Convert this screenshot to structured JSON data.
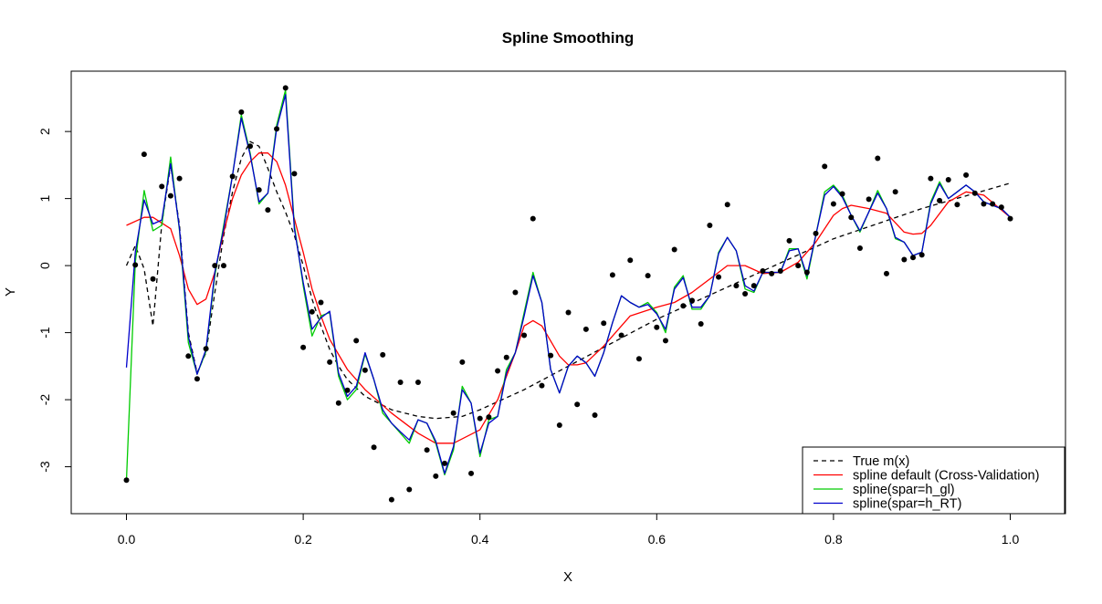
{
  "chart_data": {
    "type": "scatter",
    "title": "Spline Smoothing",
    "xlabel": "X",
    "ylabel": "Y",
    "xlim": [
      -0.0625,
      1.0625
    ],
    "ylim": [
      -3.7,
      2.9
    ],
    "x_ticks": [
      0.0,
      0.2,
      0.4,
      0.6,
      0.8,
      1.0
    ],
    "x_tick_labels": [
      "0.0",
      "0.2",
      "0.4",
      "0.6",
      "0.8",
      "1.0"
    ],
    "y_ticks": [
      -3,
      -2,
      -1,
      0,
      1,
      2
    ],
    "y_tick_labels": [
      "-3",
      "-2",
      "-1",
      "0",
      "1",
      "2"
    ],
    "grid": false,
    "legend_position": "bottom-right",
    "points": {
      "x": [
        0.0,
        0.01,
        0.02,
        0.03,
        0.04,
        0.05,
        0.06,
        0.07,
        0.08,
        0.09,
        0.1,
        0.11,
        0.12,
        0.13,
        0.14,
        0.15,
        0.16,
        0.17,
        0.18,
        0.19,
        0.2,
        0.21,
        0.22,
        0.23,
        0.24,
        0.25,
        0.26,
        0.27,
        0.28,
        0.29,
        0.3,
        0.31,
        0.32,
        0.33,
        0.34,
        0.35,
        0.36,
        0.37,
        0.38,
        0.39,
        0.4,
        0.41,
        0.42,
        0.43,
        0.44,
        0.45,
        0.46,
        0.47,
        0.48,
        0.49,
        0.5,
        0.51,
        0.52,
        0.53,
        0.54,
        0.55,
        0.56,
        0.57,
        0.58,
        0.59,
        0.6,
        0.61,
        0.62,
        0.63,
        0.64,
        0.65,
        0.66,
        0.67,
        0.68,
        0.69,
        0.7,
        0.71,
        0.72,
        0.73,
        0.74,
        0.75,
        0.76,
        0.77,
        0.78,
        0.79,
        0.8,
        0.81,
        0.82,
        0.83,
        0.84,
        0.85,
        0.86,
        0.87,
        0.88,
        0.89,
        0.9,
        0.91,
        0.92,
        0.93,
        0.94,
        0.95,
        0.96,
        0.97,
        0.98,
        0.99,
        1.0
      ],
      "y": [
        -3.2,
        0.01,
        1.66,
        -0.2,
        1.18,
        1.04,
        1.3,
        -1.35,
        -1.69,
        -1.24,
        0.0,
        0.0,
        1.33,
        2.29,
        1.78,
        1.13,
        0.83,
        2.04,
        2.65,
        1.37,
        -1.22,
        -0.69,
        -0.55,
        -1.44,
        -2.05,
        -1.86,
        -1.12,
        -1.56,
        -2.71,
        -1.33,
        -3.49,
        -1.74,
        -3.34,
        -1.74,
        -2.75,
        -3.14,
        -2.95,
        -2.2,
        -1.44,
        -3.1,
        -2.28,
        -2.26,
        -1.57,
        -1.37,
        -0.4,
        -1.04,
        0.7,
        -1.79,
        -1.34,
        -2.38,
        -0.7,
        -2.07,
        -0.95,
        -2.23,
        -0.86,
        -0.14,
        -1.04,
        0.08,
        -1.39,
        -0.15,
        -0.92,
        -1.12,
        0.24,
        -0.6,
        -0.52,
        -0.87,
        0.6,
        -0.17,
        0.91,
        -0.3,
        -0.42,
        -0.3,
        -0.08,
        -0.12,
        -0.08,
        0.37,
        0.0,
        -0.1,
        0.48,
        1.48,
        0.92,
        1.07,
        0.72,
        0.26,
        0.99,
        1.6,
        -0.12,
        1.1,
        0.09,
        0.12,
        0.16,
        1.3,
        0.97,
        1.28,
        0.91,
        1.35,
        1.08,
        0.92,
        0.92,
        0.87,
        0.7
      ]
    },
    "series": [
      {
        "name": "True m(x)",
        "color": "#000000",
        "dash": true,
        "x": [
          0.0,
          0.01,
          0.02,
          0.03,
          0.04,
          0.05,
          0.06,
          0.07,
          0.08,
          0.09,
          0.1,
          0.11,
          0.12,
          0.13,
          0.14,
          0.15,
          0.16,
          0.17,
          0.18,
          0.19,
          0.2,
          0.21,
          0.22,
          0.23,
          0.24,
          0.25,
          0.27,
          0.3,
          0.33,
          0.35,
          0.38,
          0.4,
          0.45,
          0.5,
          0.6,
          0.7,
          0.8,
          0.9,
          1.0
        ],
        "y": [
          0.0,
          0.3,
          -0.05,
          -0.9,
          0.62,
          1.5,
          0.6,
          -1.0,
          -1.6,
          -1.3,
          -0.4,
          0.45,
          1.1,
          1.6,
          1.85,
          1.78,
          1.45,
          1.1,
          0.8,
          0.45,
          0.0,
          -0.5,
          -0.9,
          -1.25,
          -1.5,
          -1.7,
          -1.95,
          -2.15,
          -2.25,
          -2.28,
          -2.25,
          -2.15,
          -1.85,
          -1.5,
          -0.8,
          -0.2,
          0.4,
          0.85,
          1.23
        ]
      },
      {
        "name": "spline default (Cross-Validation)",
        "color": "#ff0000",
        "dash": false,
        "x": [
          0.0,
          0.02,
          0.03,
          0.05,
          0.06,
          0.07,
          0.08,
          0.09,
          0.1,
          0.11,
          0.12,
          0.13,
          0.14,
          0.15,
          0.16,
          0.17,
          0.18,
          0.19,
          0.2,
          0.21,
          0.22,
          0.23,
          0.25,
          0.27,
          0.3,
          0.33,
          0.35,
          0.37,
          0.4,
          0.42,
          0.44,
          0.45,
          0.46,
          0.47,
          0.49,
          0.5,
          0.51,
          0.52,
          0.54,
          0.57,
          0.6,
          0.62,
          0.64,
          0.67,
          0.68,
          0.7,
          0.72,
          0.74,
          0.76,
          0.78,
          0.8,
          0.81,
          0.82,
          0.84,
          0.86,
          0.88,
          0.89,
          0.9,
          0.91,
          0.93,
          0.95,
          0.97,
          1.0
        ],
        "y": [
          0.6,
          0.72,
          0.72,
          0.55,
          0.15,
          -0.35,
          -0.58,
          -0.5,
          -0.1,
          0.5,
          1.0,
          1.35,
          1.55,
          1.68,
          1.68,
          1.55,
          1.2,
          0.7,
          0.2,
          -0.35,
          -0.75,
          -1.1,
          -1.55,
          -1.85,
          -2.2,
          -2.5,
          -2.65,
          -2.65,
          -2.45,
          -2.0,
          -1.3,
          -0.9,
          -0.82,
          -0.9,
          -1.35,
          -1.48,
          -1.48,
          -1.45,
          -1.2,
          -0.75,
          -0.62,
          -0.55,
          -0.4,
          -0.1,
          0.0,
          0.0,
          -0.12,
          -0.1,
          0.05,
          0.35,
          0.75,
          0.85,
          0.9,
          0.85,
          0.78,
          0.5,
          0.47,
          0.48,
          0.6,
          0.95,
          1.1,
          1.05,
          0.72
        ]
      },
      {
        "name": "spline(spar=h_gl)",
        "color": "#00cc00",
        "dash": false,
        "x": [
          0.0,
          0.01,
          0.02,
          0.03,
          0.04,
          0.05,
          0.06,
          0.07,
          0.08,
          0.09,
          0.1,
          0.11,
          0.12,
          0.13,
          0.14,
          0.15,
          0.16,
          0.17,
          0.18,
          0.19,
          0.2,
          0.21,
          0.22,
          0.23,
          0.24,
          0.25,
          0.26,
          0.27,
          0.28,
          0.29,
          0.3,
          0.31,
          0.32,
          0.33,
          0.34,
          0.35,
          0.36,
          0.37,
          0.38,
          0.39,
          0.4,
          0.41,
          0.42,
          0.43,
          0.44,
          0.45,
          0.46,
          0.47,
          0.48,
          0.49,
          0.5,
          0.51,
          0.52,
          0.53,
          0.54,
          0.55,
          0.56,
          0.57,
          0.58,
          0.59,
          0.6,
          0.61,
          0.62,
          0.63,
          0.64,
          0.65,
          0.66,
          0.67,
          0.68,
          0.69,
          0.7,
          0.71,
          0.72,
          0.73,
          0.74,
          0.75,
          0.76,
          0.77,
          0.78,
          0.79,
          0.8,
          0.81,
          0.82,
          0.83,
          0.84,
          0.85,
          0.86,
          0.87,
          0.88,
          0.89,
          0.9,
          0.91,
          0.92,
          0.93,
          0.94,
          0.95,
          0.96,
          0.97,
          0.98,
          0.99,
          1.0
        ],
        "y": [
          -3.2,
          0.05,
          1.12,
          0.52,
          0.6,
          1.62,
          0.52,
          -1.15,
          -1.62,
          -1.28,
          -0.15,
          0.6,
          1.35,
          2.25,
          1.68,
          0.92,
          1.08,
          2.1,
          2.62,
          0.6,
          -0.3,
          -1.05,
          -0.75,
          -0.7,
          -1.65,
          -2.0,
          -1.85,
          -1.32,
          -1.7,
          -2.2,
          -2.35,
          -2.5,
          -2.65,
          -2.3,
          -2.35,
          -2.65,
          -3.12,
          -2.75,
          -1.8,
          -2.05,
          -2.85,
          -2.3,
          -2.25,
          -1.55,
          -1.3,
          -0.7,
          -0.1,
          -0.55,
          -1.55,
          -1.9,
          -1.5,
          -1.35,
          -1.45,
          -1.65,
          -1.3,
          -0.85,
          -0.45,
          -0.55,
          -0.62,
          -0.55,
          -0.7,
          -1.0,
          -0.32,
          -0.15,
          -0.65,
          -0.65,
          -0.45,
          0.2,
          0.42,
          0.22,
          -0.35,
          -0.4,
          -0.1,
          -0.1,
          -0.1,
          0.25,
          0.25,
          -0.2,
          0.45,
          1.1,
          1.2,
          1.05,
          0.75,
          0.5,
          0.8,
          1.12,
          0.85,
          0.4,
          0.35,
          0.15,
          0.2,
          0.95,
          1.25,
          1.0,
          1.1,
          1.2,
          1.1,
          0.95,
          0.9,
          0.85,
          0.72
        ]
      },
      {
        "name": "spline(spar=h_RT)",
        "color": "#0000cc",
        "dash": false,
        "x": [
          0.0,
          0.01,
          0.02,
          0.03,
          0.04,
          0.05,
          0.06,
          0.07,
          0.08,
          0.09,
          0.1,
          0.11,
          0.12,
          0.13,
          0.14,
          0.15,
          0.16,
          0.17,
          0.18,
          0.19,
          0.2,
          0.21,
          0.22,
          0.23,
          0.24,
          0.25,
          0.26,
          0.27,
          0.28,
          0.29,
          0.3,
          0.31,
          0.32,
          0.33,
          0.34,
          0.35,
          0.36,
          0.37,
          0.38,
          0.39,
          0.4,
          0.41,
          0.42,
          0.43,
          0.44,
          0.45,
          0.46,
          0.47,
          0.48,
          0.49,
          0.5,
          0.51,
          0.52,
          0.53,
          0.54,
          0.55,
          0.56,
          0.57,
          0.58,
          0.59,
          0.6,
          0.61,
          0.62,
          0.63,
          0.64,
          0.65,
          0.66,
          0.67,
          0.68,
          0.69,
          0.7,
          0.71,
          0.72,
          0.73,
          0.74,
          0.75,
          0.76,
          0.77,
          0.78,
          0.79,
          0.8,
          0.81,
          0.82,
          0.83,
          0.84,
          0.85,
          0.86,
          0.87,
          0.88,
          0.89,
          0.9,
          0.91,
          0.92,
          0.93,
          0.94,
          0.95,
          0.96,
          0.97,
          0.98,
          0.99,
          1.0
        ],
        "y": [
          -1.52,
          0.2,
          0.98,
          0.62,
          0.68,
          1.52,
          0.55,
          -1.05,
          -1.62,
          -1.25,
          -0.1,
          0.55,
          1.35,
          2.2,
          1.65,
          0.95,
          1.08,
          2.05,
          2.55,
          0.55,
          -0.25,
          -0.95,
          -0.78,
          -0.68,
          -1.6,
          -1.95,
          -1.8,
          -1.3,
          -1.7,
          -2.15,
          -2.35,
          -2.48,
          -2.6,
          -2.3,
          -2.35,
          -2.62,
          -3.1,
          -2.7,
          -1.85,
          -2.05,
          -2.8,
          -2.35,
          -2.25,
          -1.6,
          -1.3,
          -0.75,
          -0.15,
          -0.55,
          -1.55,
          -1.9,
          -1.5,
          -1.35,
          -1.45,
          -1.65,
          -1.3,
          -0.85,
          -0.45,
          -0.55,
          -0.62,
          -0.58,
          -0.72,
          -0.95,
          -0.35,
          -0.18,
          -0.62,
          -0.62,
          -0.45,
          0.18,
          0.42,
          0.22,
          -0.3,
          -0.38,
          -0.1,
          -0.1,
          -0.1,
          0.22,
          0.25,
          -0.15,
          0.45,
          1.05,
          1.18,
          1.02,
          0.75,
          0.52,
          0.8,
          1.08,
          0.85,
          0.42,
          0.35,
          0.15,
          0.2,
          0.92,
          1.22,
          1.0,
          1.1,
          1.2,
          1.1,
          0.95,
          0.9,
          0.85,
          0.72
        ]
      }
    ]
  }
}
